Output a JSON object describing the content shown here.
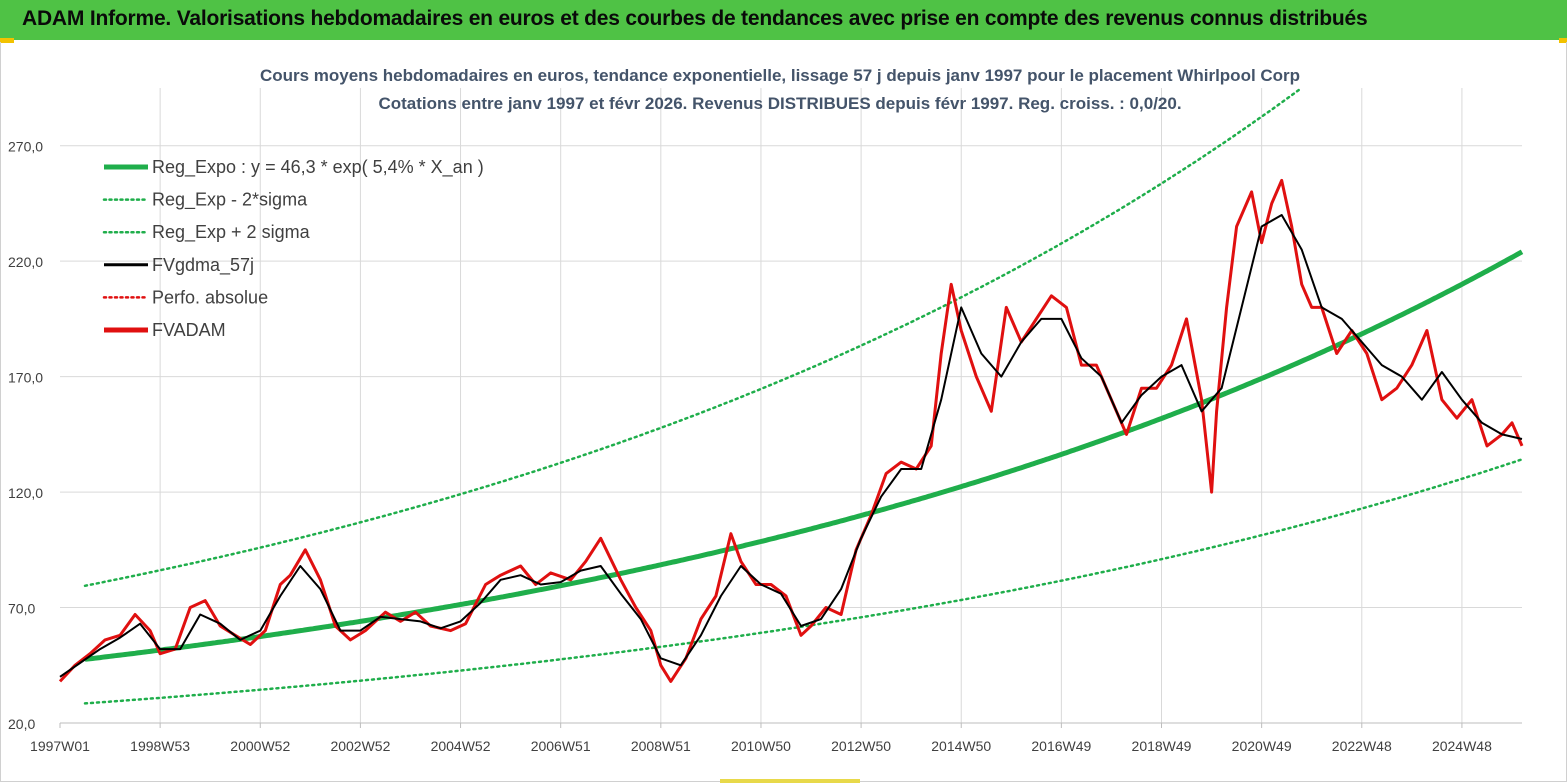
{
  "page": {
    "banner_title": "ADAM Informe. Valorisations hebdomadaires en euros et des courbes de tendances avec prise en compte des revenus connus distribués",
    "colors": {
      "banner": "#4fc245",
      "accent_gold": "#f2c200"
    }
  },
  "chart_data": {
    "type": "line",
    "title": "Cours moyens hebdomadaires en euros, tendance exponentielle, lissage 57 j depuis janv 1997 pour le placement Whirlpool Corp",
    "subtitle": "Cotations entre janv 1997 et févr 2026. Revenus DISTRIBUES depuis févr 1997. Reg. croiss. : 0,0/20.",
    "xlabel": "",
    "ylabel": "",
    "x_range": [
      1997.0,
      2026.2
    ],
    "ylim": [
      20,
      295
    ],
    "y_ticks": [
      20,
      70,
      120,
      170,
      220,
      270
    ],
    "y_tick_labels": [
      "20,0",
      "70,0",
      "120,0",
      "170,0",
      "220,0",
      "270,0"
    ],
    "x_tick_positions": [
      1997.0,
      1999.0,
      2001.0,
      2003.0,
      2005.0,
      2007.0,
      2009.0,
      2011.0,
      2013.0,
      2015.0,
      2017.0,
      2019.0,
      2021.0,
      2023.0,
      2025.0
    ],
    "x_tick_labels": [
      "1997W01",
      "1998W53",
      "2000W52",
      "2002W52",
      "2004W52",
      "2006W51",
      "2008W51",
      "2010W50",
      "2012W50",
      "2014W50",
      "2016W49",
      "2018W49",
      "2020W49",
      "2022W48",
      "2024W48"
    ],
    "grid": true,
    "legend_position": "top-left",
    "legend": [
      {
        "name": "Reg_Expo : y = 46,3 * exp( 5,4% *  X_an )",
        "color": "#1fae4b",
        "style": "solid-thick"
      },
      {
        "name": "Reg_Exp - 2*sigma",
        "color": "#1fae4b",
        "style": "dotted"
      },
      {
        "name": "Reg_Exp + 2 sigma",
        "color": "#1fae4b",
        "style": "dotted"
      },
      {
        "name": "FVgdma_57j",
        "color": "#000000",
        "style": "solid"
      },
      {
        "name": "Perfo. absolue",
        "color": "#e01010",
        "style": "dotted"
      },
      {
        "name": "FVADAM",
        "color": "#e01010",
        "style": "solid-thick"
      }
    ],
    "regression": {
      "a": 46.3,
      "rate": 0.054,
      "x0": 1997.0,
      "sigma_factor": 1.67
    },
    "series": [
      {
        "name": "FVADAM",
        "x": [
          1997.0,
          1997.3,
          1997.6,
          1997.9,
          1998.2,
          1998.5,
          1998.8,
          1999.0,
          1999.3,
          1999.6,
          1999.9,
          2000.2,
          2000.5,
          2000.8,
          2001.1,
          2001.4,
          2001.6,
          2001.9,
          2002.2,
          2002.5,
          2002.8,
          2003.1,
          2003.5,
          2003.8,
          2004.1,
          2004.4,
          2004.8,
          2005.1,
          2005.5,
          2005.8,
          2006.2,
          2006.5,
          2006.8,
          2007.2,
          2007.5,
          2007.8,
          2008.2,
          2008.5,
          2008.8,
          2009.0,
          2009.2,
          2009.5,
          2009.8,
          2010.1,
          2010.4,
          2010.6,
          2010.9,
          2011.2,
          2011.5,
          2011.8,
          2012.0,
          2012.3,
          2012.6,
          2012.9,
          2013.2,
          2013.5,
          2013.8,
          2014.1,
          2014.4,
          2014.6,
          2014.8,
          2015.0,
          2015.3,
          2015.6,
          2015.9,
          2016.2,
          2016.5,
          2016.8,
          2017.1,
          2017.4,
          2017.7,
          2018.0,
          2018.3,
          2018.6,
          2018.9,
          2019.2,
          2019.5,
          2019.8,
          2020.0,
          2020.1,
          2020.3,
          2020.5,
          2020.8,
          2021.0,
          2021.2,
          2021.4,
          2021.6,
          2021.8,
          2022.0,
          2022.2,
          2022.5,
          2022.8,
          2023.1,
          2023.4,
          2023.7,
          2024.0,
          2024.3,
          2024.6,
          2024.9,
          2025.2,
          2025.5,
          2025.8,
          2026.0,
          2026.2
        ],
        "values": [
          38,
          45,
          50,
          56,
          58,
          67,
          60,
          50,
          52,
          70,
          73,
          62,
          58,
          54,
          60,
          80,
          84,
          95,
          82,
          62,
          56,
          60,
          68,
          64,
          68,
          62,
          60,
          63,
          80,
          84,
          88,
          80,
          85,
          82,
          90,
          100,
          82,
          70,
          60,
          45,
          38,
          48,
          65,
          75,
          102,
          90,
          80,
          80,
          75,
          58,
          62,
          70,
          67,
          95,
          110,
          128,
          133,
          130,
          140,
          180,
          210,
          190,
          170,
          155,
          200,
          185,
          195,
          205,
          200,
          175,
          175,
          160,
          145,
          165,
          165,
          175,
          195,
          160,
          120,
          155,
          200,
          235,
          250,
          228,
          245,
          255,
          235,
          210,
          200,
          200,
          180,
          190,
          180,
          160,
          165,
          175,
          190,
          160,
          152,
          160,
          140,
          145,
          150,
          140
        ]
      },
      {
        "name": "FVgdma_57j",
        "x": [
          1997.0,
          1997.4,
          1997.8,
          1998.2,
          1998.6,
          1999.0,
          1999.4,
          1999.8,
          2000.2,
          2000.6,
          2001.0,
          2001.4,
          2001.8,
          2002.2,
          2002.6,
          2003.0,
          2003.4,
          2003.8,
          2004.2,
          2004.6,
          2005.0,
          2005.4,
          2005.8,
          2006.2,
          2006.6,
          2007.0,
          2007.4,
          2007.8,
          2008.2,
          2008.6,
          2009.0,
          2009.4,
          2009.8,
          2010.2,
          2010.6,
          2011.0,
          2011.4,
          2011.8,
          2012.2,
          2012.6,
          2013.0,
          2013.4,
          2013.8,
          2014.2,
          2014.6,
          2015.0,
          2015.4,
          2015.8,
          2016.2,
          2016.6,
          2017.0,
          2017.4,
          2017.8,
          2018.2,
          2018.6,
          2019.0,
          2019.4,
          2019.8,
          2020.2,
          2020.6,
          2021.0,
          2021.4,
          2021.8,
          2022.2,
          2022.6,
          2023.0,
          2023.4,
          2023.8,
          2024.2,
          2024.6,
          2025.0,
          2025.4,
          2025.8,
          2026.2
        ],
        "values": [
          40,
          46,
          52,
          57,
          63,
          52,
          52,
          67,
          63,
          56,
          60,
          75,
          88,
          78,
          60,
          60,
          66,
          65,
          64,
          61,
          64,
          72,
          82,
          84,
          80,
          81,
          86,
          88,
          76,
          65,
          48,
          45,
          58,
          75,
          88,
          80,
          76,
          62,
          65,
          78,
          100,
          118,
          130,
          130,
          160,
          200,
          180,
          170,
          185,
          195,
          195,
          178,
          170,
          150,
          162,
          170,
          175,
          155,
          165,
          200,
          235,
          240,
          225,
          200,
          195,
          185,
          175,
          170,
          160,
          172,
          160,
          150,
          145,
          143
        ]
      }
    ]
  }
}
